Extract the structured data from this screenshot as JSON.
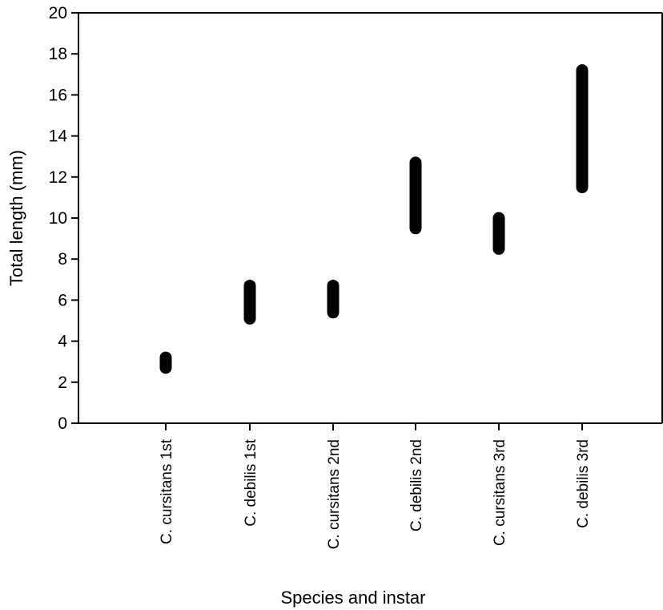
{
  "chart_data": {
    "type": "scatter",
    "title": "",
    "xlabel": "Species and instar",
    "ylabel": "Total length (mm)",
    "ylim": [
      0,
      20
    ],
    "yticks": [
      0,
      2,
      4,
      6,
      8,
      10,
      12,
      14,
      16,
      18,
      20
    ],
    "categories": [
      "C. cursitans 1st",
      "C. debilis 1st",
      "C. cursitans 2nd",
      "C. debilis 2nd",
      "C. cursitans 3rd",
      "C. debilis 3rd"
    ],
    "ranges": [
      {
        "category": "C. cursitans 1st",
        "min": 2.7,
        "max": 3.2
      },
      {
        "category": "C. debilis 1st",
        "min": 5.1,
        "max": 6.7
      },
      {
        "category": "C. cursitans 2nd",
        "min": 5.4,
        "max": 6.7
      },
      {
        "category": "C. debilis 2nd",
        "min": 9.5,
        "max": 12.7
      },
      {
        "category": "C. cursitans 3rd",
        "min": 8.5,
        "max": 10.0
      },
      {
        "category": "C. debilis 3rd",
        "min": 11.5,
        "max": 17.2
      }
    ],
    "grid": false,
    "marker_color": "#000000"
  }
}
